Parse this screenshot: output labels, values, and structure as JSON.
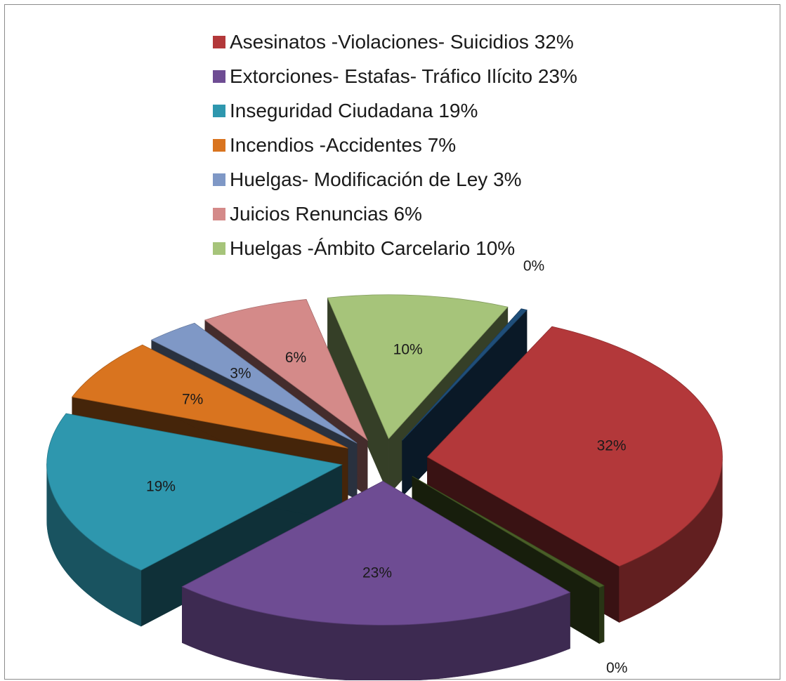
{
  "chart_data": {
    "type": "pie",
    "style": "3d-exploded",
    "legend_position": "top",
    "slices": [
      {
        "label": "Asesinatos -Violaciones- Suicidios 32%",
        "value": 32,
        "data_label": "32%",
        "color": "#B3383A",
        "in_legend": true
      },
      {
        "label": "",
        "value": 0,
        "data_label": "0%",
        "color": "#495E27",
        "in_legend": false
      },
      {
        "label": "Extorciones- Estafas- Tráfico Ilícito 23%",
        "value": 23,
        "data_label": "23%",
        "color": "#6E4C93",
        "in_legend": true
      },
      {
        "label": "Inseguridad Ciudadana 19%",
        "value": 19,
        "data_label": "19%",
        "color": "#2E97AE",
        "in_legend": true
      },
      {
        "label": "Incendios -Accidentes 7%",
        "value": 7,
        "data_label": "7%",
        "color": "#D9741F",
        "in_legend": true
      },
      {
        "label": "Huelgas- Modificación de Ley 3%",
        "value": 3,
        "data_label": "3%",
        "color": "#7F98C6",
        "in_legend": true
      },
      {
        "label": "Juicios Renuncias 6%",
        "value": 6,
        "data_label": "6%",
        "color": "#D48A89",
        "in_legend": true
      },
      {
        "label": "Huelgas -Ámbito Carcelario 10%",
        "value": 10,
        "data_label": "10%",
        "color": "#A6C47A",
        "in_legend": true
      },
      {
        "label": "",
        "value": 0,
        "data_label": "0%",
        "color": "#1F4E79",
        "in_legend": false
      }
    ]
  }
}
